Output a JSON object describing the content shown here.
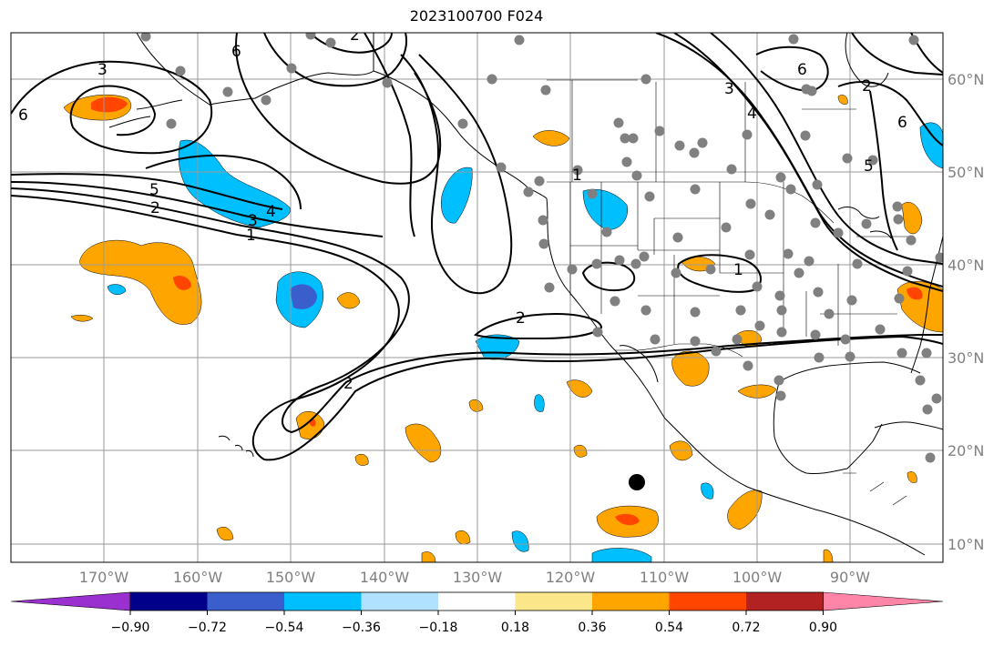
{
  "title": "2023100700 F024",
  "lon_labels": [
    "170°W",
    "160°W",
    "150°W",
    "140°W",
    "130°W",
    "120°W",
    "110°W",
    "100°W",
    "90°W"
  ],
  "lat_labels": [
    "60°N",
    "50°N",
    "40°N",
    "30°N",
    "20°N",
    "10°N"
  ],
  "colorbar": {
    "ticks": [
      "−0.90",
      "−0.72",
      "−0.54",
      "−0.36",
      "−0.18",
      "0.18",
      "0.36",
      "0.54",
      "0.72",
      "0.90"
    ],
    "colors": [
      "#9b30d0",
      "#00008b",
      "#3a5fcd",
      "#00bfff",
      "#b0e2ff",
      "#ffffff",
      "#fbe68a",
      "#ffa500",
      "#ff4500",
      "#b22222",
      "#ff85a8"
    ]
  },
  "contour_labels": [
    "3",
    "6",
    "6",
    "2",
    "5",
    "2",
    "3",
    "4",
    "1",
    "2",
    "2",
    "3",
    "4",
    "6",
    "5",
    "6",
    "1",
    "2",
    "1"
  ],
  "colors": {
    "contour": "#000000",
    "grid": "#9a9a9a",
    "obs_dot": "#808080",
    "neg_fill": "#00bfff",
    "neg_core": "#3a5fcd",
    "pos_fill": "#ffa500",
    "pos_core": "#ff4500"
  }
}
